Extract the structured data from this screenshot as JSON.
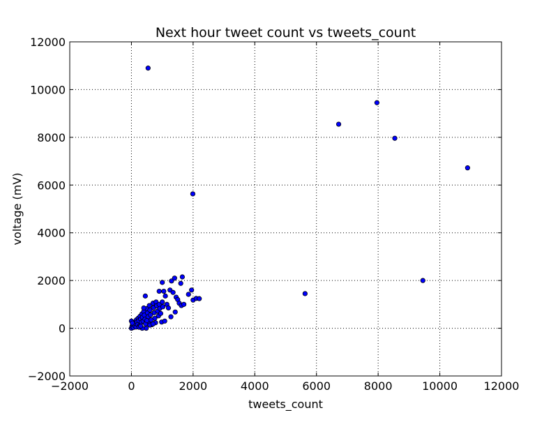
{
  "chart_data": {
    "type": "scatter",
    "title": "Next hour tweet count vs tweets_count",
    "xlabel": "tweets_count",
    "ylabel": "voltage (mV)",
    "xlim": [
      -2000,
      12000
    ],
    "ylim": [
      -2000,
      12000
    ],
    "xticks": [
      -2000,
      0,
      2000,
      4000,
      6000,
      8000,
      10000,
      12000
    ],
    "yticks": [
      -2000,
      0,
      2000,
      4000,
      6000,
      8000,
      10000,
      12000
    ],
    "xtick_labels": [
      "−2000",
      "0",
      "2000",
      "4000",
      "6000",
      "8000",
      "10000",
      "12000"
    ],
    "ytick_labels": [
      "−2000",
      "0",
      "2000",
      "4000",
      "6000",
      "8000",
      "10000",
      "12000"
    ],
    "grid": true,
    "marker_color": "#0000ff",
    "series": [
      {
        "points": [
          [
            540,
            10900
          ],
          [
            1990,
            5630
          ],
          [
            6720,
            8550
          ],
          [
            7960,
            9450
          ],
          [
            8540,
            7960
          ],
          [
            10900,
            6720
          ],
          [
            5630,
            1450
          ],
          [
            9450,
            2000
          ],
          [
            0,
            0
          ],
          [
            20,
            80
          ],
          [
            40,
            150
          ],
          [
            60,
            30
          ],
          [
            80,
            250
          ],
          [
            100,
            120
          ],
          [
            120,
            200
          ],
          [
            0,
            300
          ],
          [
            30,
            220
          ],
          [
            150,
            50
          ],
          [
            160,
            350
          ],
          [
            180,
            260
          ],
          [
            200,
            150
          ],
          [
            220,
            420
          ],
          [
            240,
            320
          ],
          [
            260,
            100
          ],
          [
            280,
            500
          ],
          [
            300,
            380
          ],
          [
            320,
            250
          ],
          [
            340,
            600
          ],
          [
            360,
            460
          ],
          [
            380,
            300
          ],
          [
            400,
            700
          ],
          [
            420,
            550
          ],
          [
            440,
            380
          ],
          [
            460,
            180
          ],
          [
            480,
            0
          ],
          [
            500,
            820
          ],
          [
            520,
            640
          ],
          [
            540,
            480
          ],
          [
            560,
            280
          ],
          [
            580,
            950
          ],
          [
            600,
            760
          ],
          [
            620,
            560
          ],
          [
            640,
            350
          ],
          [
            660,
            150
          ],
          [
            700,
            1050
          ],
          [
            720,
            860
          ],
          [
            740,
            650
          ],
          [
            760,
            420
          ],
          [
            780,
            230
          ],
          [
            800,
            1100
          ],
          [
            820,
            940
          ],
          [
            850,
            720
          ],
          [
            880,
            520
          ],
          [
            900,
            1000
          ],
          [
            920,
            830
          ],
          [
            950,
            620
          ],
          [
            980,
            260
          ],
          [
            1000,
            1100
          ],
          [
            1020,
            900
          ],
          [
            1050,
            1550
          ],
          [
            1080,
            300
          ],
          [
            1100,
            1350
          ],
          [
            1150,
            1000
          ],
          [
            1200,
            850
          ],
          [
            1250,
            1600
          ],
          [
            1280,
            480
          ],
          [
            1300,
            1980
          ],
          [
            1350,
            1500
          ],
          [
            1400,
            2100
          ],
          [
            1420,
            680
          ],
          [
            1450,
            1300
          ],
          [
            1500,
            1200
          ],
          [
            1550,
            1050
          ],
          [
            1600,
            1880
          ],
          [
            1620,
            950
          ],
          [
            1650,
            2150
          ],
          [
            1700,
            1000
          ],
          [
            1850,
            1420
          ],
          [
            1950,
            1600
          ],
          [
            2000,
            1180
          ],
          [
            2100,
            1250
          ],
          [
            2200,
            1240
          ],
          [
            450,
            1350
          ],
          [
            400,
            850
          ],
          [
            1000,
            1920
          ],
          [
            900,
            1550
          ],
          [
            350,
            0
          ],
          [
            250,
            40
          ],
          [
            300,
            90
          ],
          [
            500,
            320
          ],
          [
            600,
            130
          ],
          [
            700,
            180
          ]
        ]
      }
    ]
  }
}
